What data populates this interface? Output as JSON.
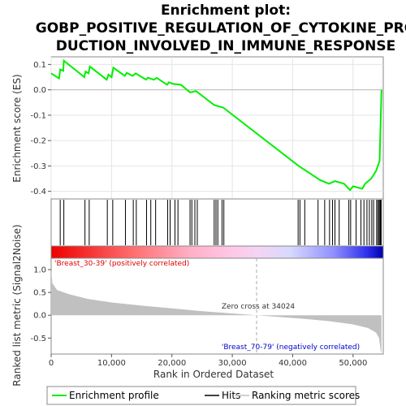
{
  "chart_data": {
    "type": "line",
    "title_lines": [
      "Enrichment plot:",
      "GOBP_POSITIVE_REGULATION_OF_CYTOKINE_PRO",
      "DUCTION_INVOLVED_IN_IMMUNE_RESPONSE"
    ],
    "xlabel": "Rank in Ordered Dataset",
    "ylabel_top": "Enrichment score (ES)",
    "ylabel_bottom": "Ranked list metric (Signal2Noise)",
    "xlim": [
      0,
      55000
    ],
    "x_ticks": [
      0,
      10000,
      20000,
      30000,
      40000,
      50000
    ],
    "x_tick_labels": [
      "0",
      "10,000",
      "20,000",
      "30,000",
      "40,000",
      "50,000"
    ],
    "es_ylim": [
      -0.43,
      0.13
    ],
    "es_ticks": [
      0.1,
      0.0,
      -0.1,
      -0.2,
      -0.3,
      -0.4
    ],
    "es_tick_labels": [
      "0.1",
      "0.0",
      "-0.1",
      "-0.2",
      "-0.3",
      "-0.4"
    ],
    "metric_ylim": [
      -0.85,
      1.25
    ],
    "metric_ticks": [
      1.0,
      0.5,
      0.0,
      -0.5
    ],
    "metric_tick_labels": [
      "1.0",
      "0.5",
      "0.0",
      "-0.5"
    ],
    "enrichment_profile": {
      "name": "Enrichment profile",
      "color": "#00ee00",
      "points": [
        [
          0,
          0.065
        ],
        [
          1300,
          0.045
        ],
        [
          1500,
          0.08
        ],
        [
          2000,
          0.075
        ],
        [
          2100,
          0.115
        ],
        [
          5500,
          0.05
        ],
        [
          5700,
          0.072
        ],
        [
          6200,
          0.065
        ],
        [
          6400,
          0.092
        ],
        [
          9200,
          0.04
        ],
        [
          9500,
          0.06
        ],
        [
          10000,
          0.05
        ],
        [
          10300,
          0.087
        ],
        [
          12200,
          0.055
        ],
        [
          12500,
          0.067
        ],
        [
          13500,
          0.055
        ],
        [
          14000,
          0.065
        ],
        [
          15700,
          0.04
        ],
        [
          16000,
          0.048
        ],
        [
          17000,
          0.04
        ],
        [
          17500,
          0.047
        ],
        [
          19200,
          0.02
        ],
        [
          19500,
          0.03
        ],
        [
          20200,
          0.023
        ],
        [
          21500,
          0.02
        ],
        [
          23000,
          -0.01
        ],
        [
          24000,
          -0.005
        ],
        [
          27000,
          -0.06
        ],
        [
          28500,
          -0.07
        ],
        [
          41000,
          -0.3
        ],
        [
          44500,
          -0.355
        ],
        [
          46000,
          -0.37
        ],
        [
          47000,
          -0.36
        ],
        [
          48500,
          -0.37
        ],
        [
          49500,
          -0.395
        ],
        [
          50000,
          -0.38
        ],
        [
          51500,
          -0.39
        ],
        [
          52000,
          -0.37
        ],
        [
          53000,
          -0.35
        ],
        [
          53800,
          -0.32
        ],
        [
          54400,
          -0.28
        ],
        [
          54600,
          -0.1
        ],
        [
          54700,
          0.0
        ]
      ]
    },
    "hits": {
      "name": "Hits",
      "color": "#000000",
      "ranks": [
        1500,
        2100,
        5600,
        6300,
        9300,
        10200,
        12300,
        13600,
        14100,
        15800,
        16500,
        17300,
        19300,
        19700,
        20500,
        21000,
        23000,
        23300,
        23800,
        24200,
        27000,
        27300,
        27600,
        28300,
        28600,
        40900,
        41200,
        42000,
        44200,
        45300,
        46100,
        46600,
        47000,
        47700,
        49300,
        49600,
        50500,
        51300,
        51800,
        52300,
        52700,
        53100,
        53400,
        53900,
        54100,
        54300,
        54450,
        54550,
        54650
      ]
    },
    "ranking_metric": {
      "name": "Ranking metric scores",
      "color": "#c0c0c0",
      "points": [
        [
          0,
          1.0
        ],
        [
          200,
          0.7
        ],
        [
          1000,
          0.55
        ],
        [
          3000,
          0.46
        ],
        [
          6000,
          0.36
        ],
        [
          10000,
          0.28
        ],
        [
          15000,
          0.21
        ],
        [
          20000,
          0.15
        ],
        [
          25000,
          0.09
        ],
        [
          30000,
          0.04
        ],
        [
          34024,
          0.0
        ],
        [
          38000,
          -0.04
        ],
        [
          42000,
          -0.08
        ],
        [
          46000,
          -0.13
        ],
        [
          50000,
          -0.2
        ],
        [
          52500,
          -0.28
        ],
        [
          53800,
          -0.38
        ],
        [
          54300,
          -0.5
        ],
        [
          54600,
          -0.8
        ],
        [
          54700,
          -0.8
        ]
      ]
    },
    "annotations": {
      "positive_label": "'Breast_30-39' (positively correlated)",
      "negative_label": "'Breast_70-79' (negatively correlated)",
      "zero_cross_label": "Zero cross at 34024",
      "zero_cross_rank": 34024
    },
    "colors": {
      "positive_label": "#dd0000",
      "negative_label": "#0000cc",
      "zero_cross_line": "#aaaaaa"
    },
    "legend": {
      "placement": "bottom",
      "entries": [
        "Enrichment profile",
        "Hits",
        "Ranking metric scores"
      ]
    }
  }
}
